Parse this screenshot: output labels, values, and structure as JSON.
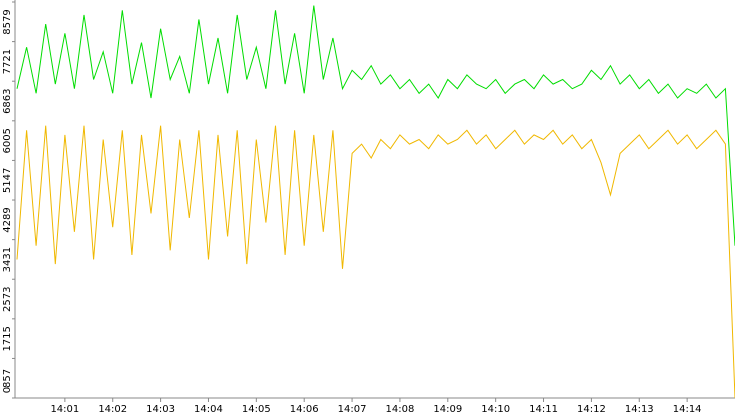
{
  "chart_data": {
    "type": "line",
    "x": [
      840,
      840.2,
      840.4,
      840.6,
      840.8,
      841,
      841.2,
      841.4,
      841.6,
      841.8,
      842,
      842.2,
      842.4,
      842.6,
      842.8,
      843,
      843.2,
      843.4,
      843.6,
      843.8,
      844,
      844.2,
      844.4,
      844.6,
      844.8,
      845,
      845.2,
      845.4,
      845.6,
      845.8,
      846,
      846.2,
      846.4,
      846.6,
      846.8,
      847,
      847.2,
      847.4,
      847.6,
      847.8,
      848,
      848.2,
      848.4,
      848.6,
      848.8,
      849,
      849.2,
      849.4,
      849.6,
      849.8,
      850,
      850.2,
      850.4,
      850.6,
      850.8,
      851,
      851.2,
      851.4,
      851.6,
      851.8,
      852,
      852.2,
      852.4,
      852.6,
      852.8,
      853,
      853.2,
      853.4,
      853.6,
      853.8,
      854,
      854.2,
      854.4,
      854.6,
      854.8,
      855
    ],
    "series": [
      {
        "color": "#00dd00",
        "values": [
          6700,
          7600,
          6600,
          8100,
          6800,
          7900,
          6700,
          8300,
          6900,
          7500,
          6600,
          8400,
          6800,
          7700,
          6500,
          8000,
          6900,
          7400,
          6600,
          8200,
          6800,
          7800,
          6600,
          8300,
          6900,
          7600,
          6700,
          8400,
          6800,
          7900,
          6600,
          8500,
          6900,
          7800,
          6700,
          7100,
          6900,
          7200,
          6800,
          7000,
          6700,
          6900,
          6600,
          6800,
          6500,
          6900,
          6700,
          7000,
          6800,
          6700,
          6900,
          6600,
          6800,
          6900,
          6700,
          7000,
          6800,
          6900,
          6700,
          6800,
          7100,
          6900,
          7200,
          6800,
          7000,
          6700,
          6900,
          6600,
          6800,
          6500,
          6700,
          6600,
          6800,
          6500,
          6700,
          3300
        ]
      },
      {
        "color": "#f0b800",
        "values": [
          3000,
          5800,
          3300,
          5900,
          2900,
          5700,
          3600,
          5900,
          3000,
          5600,
          3700,
          5800,
          3100,
          5700,
          4000,
          5900,
          3200,
          5600,
          3900,
          5800,
          3000,
          5700,
          3500,
          5800,
          2900,
          5600,
          3800,
          5900,
          3100,
          5800,
          3300,
          5700,
          3600,
          5800,
          2800,
          5300,
          5500,
          5200,
          5600,
          5400,
          5700,
          5500,
          5600,
          5400,
          5700,
          5500,
          5600,
          5800,
          5500,
          5700,
          5400,
          5600,
          5800,
          5500,
          5700,
          5600,
          5800,
          5500,
          5700,
          5400,
          5600,
          5100,
          4400,
          5300,
          5500,
          5700,
          5400,
          5600,
          5800,
          5500,
          5700,
          5400,
          5600,
          5800,
          5500,
          0
        ]
      }
    ],
    "xlim": [
      840,
      855
    ],
    "xticks": [
      {
        "value": 841,
        "label": "14:01"
      },
      {
        "value": 842,
        "label": "14:02"
      },
      {
        "value": 843,
        "label": "14:03"
      },
      {
        "value": 844,
        "label": "14:04"
      },
      {
        "value": 845,
        "label": "14:05"
      },
      {
        "value": 846,
        "label": "14:06"
      },
      {
        "value": 847,
        "label": "14:07"
      },
      {
        "value": 848,
        "label": "14:08"
      },
      {
        "value": 849,
        "label": "14:09"
      },
      {
        "value": 850,
        "label": "14:10"
      },
      {
        "value": 851,
        "label": "14:11"
      },
      {
        "value": 852,
        "label": "14:12"
      },
      {
        "value": 853,
        "label": "14:13"
      },
      {
        "value": 854,
        "label": "14:14"
      }
    ],
    "ylim": [
      0,
      8579
    ],
    "yticks": [
      0,
      857,
      1715,
      2573,
      3431,
      4289,
      5147,
      6005,
      6863,
      7721,
      8579
    ]
  }
}
